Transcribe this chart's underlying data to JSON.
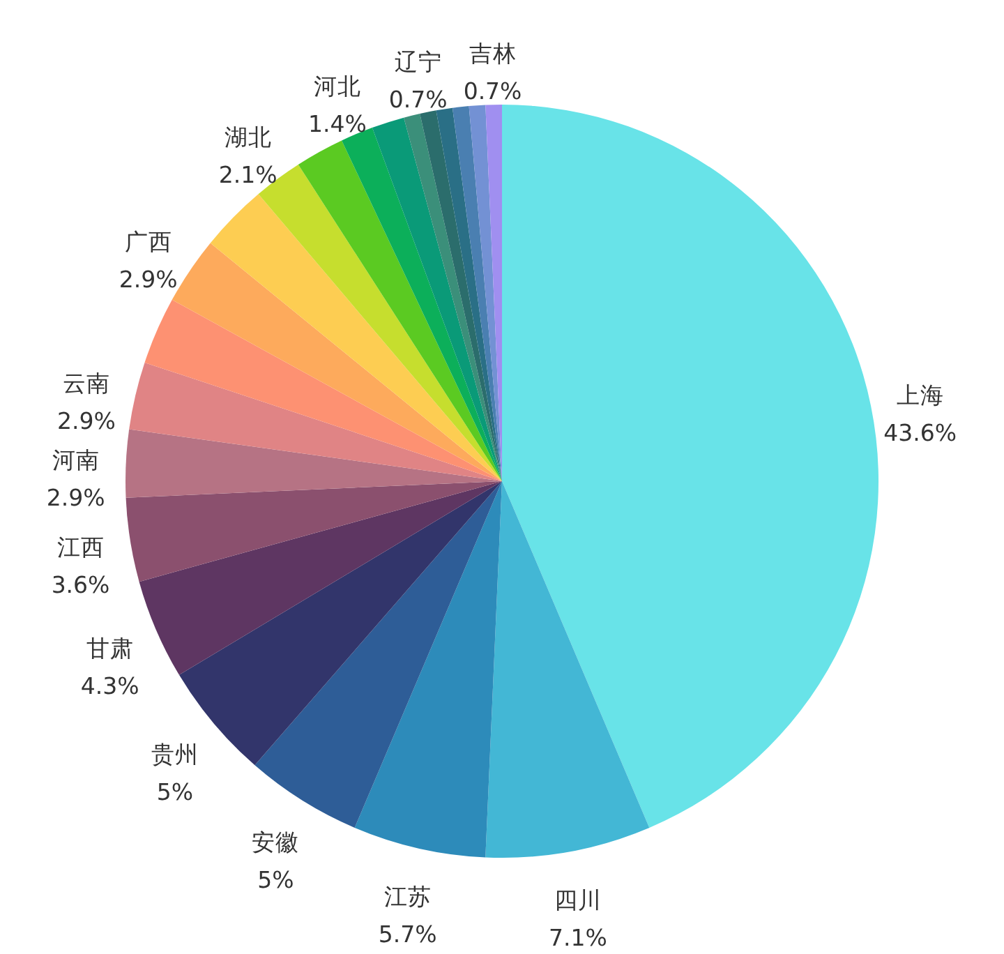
{
  "chart_data": {
    "type": "pie",
    "categories": [
      "上海",
      "四川",
      "江苏",
      "安徽",
      "贵州",
      "甘肃",
      "江西",
      "河南",
      "云南",
      null,
      "广西",
      null,
      "湖北",
      null,
      "河北",
      null,
      null,
      "辽宁",
      null,
      null,
      null,
      "吉林"
    ],
    "values": [
      43.6,
      7.1,
      5.7,
      5,
      5,
      4.3,
      3.6,
      2.9,
      2.9,
      2.9,
      2.9,
      2.9,
      2.1,
      2.1,
      1.4,
      1.4,
      0.7,
      0.7,
      0.7,
      0.7,
      0.7,
      0.7
    ],
    "colors": [
      "#68e3e8",
      "#43b7d5",
      "#2d8bba",
      "#2e5d97",
      "#32356b",
      "#5e3662",
      "#8b506e",
      "#b67384",
      "#e08485",
      "#fd9172",
      "#fdaa5c",
      "#fdcd52",
      "#c6de2e",
      "#5bca22",
      "#0caf5a",
      "#0a9a78",
      "#3b8f7a",
      "#2b6d6c",
      "#2a6f86",
      "#4a7fb1",
      "#7391d4",
      "#a08ff0"
    ],
    "value_labels": [
      "43.6%",
      "7.1%",
      "5.7%",
      "5%",
      "5%",
      "4.3%",
      "3.6%",
      "2.9%",
      "2.9%",
      null,
      "2.9%",
      null,
      "2.1%",
      null,
      "1.4%",
      null,
      null,
      "0.7%",
      null,
      null,
      null,
      "0.7%"
    ]
  }
}
